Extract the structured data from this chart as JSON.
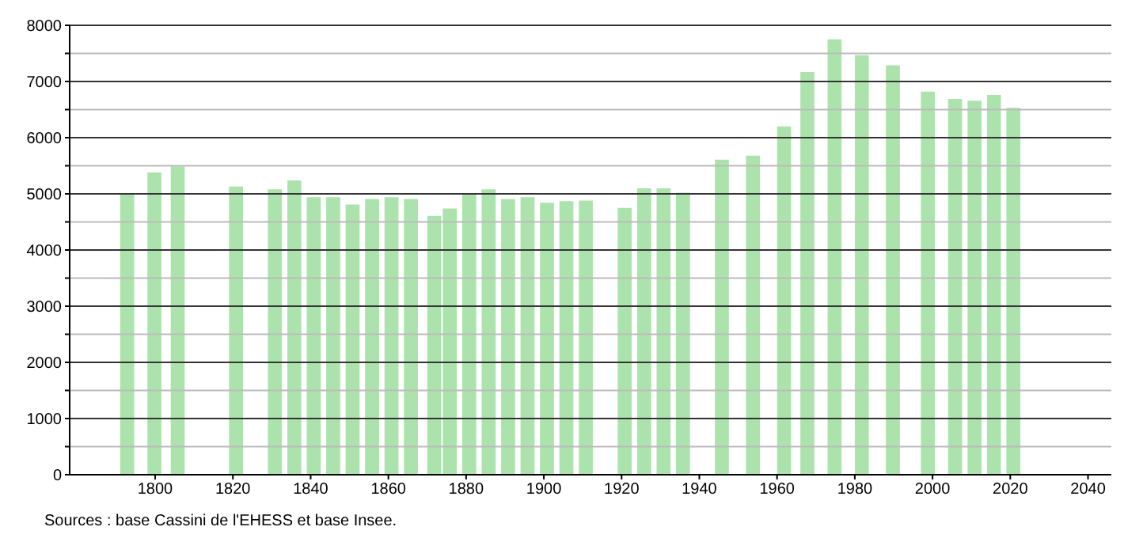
{
  "chart_data": {
    "type": "bar",
    "x": [
      1793,
      1800,
      1806,
      1821,
      1831,
      1836,
      1841,
      1846,
      1851,
      1856,
      1861,
      1866,
      1872,
      1876,
      1881,
      1886,
      1891,
      1896,
      1901,
      1906,
      1911,
      1921,
      1926,
      1931,
      1936,
      1946,
      1954,
      1962,
      1968,
      1975,
      1982,
      1990,
      1999,
      2006,
      2011,
      2016,
      2021
    ],
    "values": [
      5000,
      5380,
      5490,
      5130,
      5080,
      5240,
      4940,
      4940,
      4810,
      4910,
      4940,
      4910,
      4610,
      4740,
      5000,
      5080,
      4910,
      4940,
      4840,
      4870,
      4880,
      4750,
      5100,
      5100,
      5020,
      5610,
      5680,
      6200,
      7170,
      7750,
      7470,
      7290,
      6820,
      6690,
      6660,
      6760,
      6530
    ],
    "color": "#ace3ac",
    "xlim": [
      1778,
      2046
    ],
    "xticks": [
      1800,
      1820,
      1840,
      1860,
      1880,
      1900,
      1920,
      1940,
      1960,
      1980,
      2000,
      2020,
      2040
    ],
    "ylim": [
      0,
      8000
    ],
    "yticks": [
      0,
      {
        "value": 500,
        "label": null
      },
      1000,
      {
        "value": 1500,
        "label": null
      },
      2000,
      {
        "value": 2500,
        "label": null
      },
      3000,
      {
        "value": 3500,
        "label": null
      },
      4000,
      {
        "value": 4500,
        "label": null
      },
      5000,
      {
        "value": 5500,
        "label": null
      },
      6000,
      {
        "value": 6500,
        "label": null
      },
      7000,
      {
        "value": 7500,
        "label": null
      },
      8000
    ],
    "grid": "y",
    "annotations": [
      "Sources : base Cassini de l'EHESS et base Insee."
    ]
  }
}
